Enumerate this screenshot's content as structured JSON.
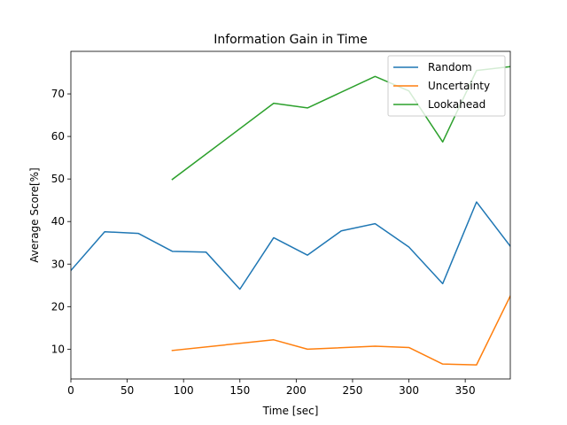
{
  "chart_data": {
    "type": "line",
    "title": "Information Gain in Time",
    "xlabel": "Time [sec]",
    "ylabel": "Average Score[%]",
    "xlim": [
      0,
      390
    ],
    "ylim": [
      3,
      80
    ],
    "xticks": [
      0,
      50,
      100,
      150,
      200,
      250,
      300,
      350
    ],
    "yticks": [
      10,
      20,
      30,
      40,
      50,
      60,
      70
    ],
    "grid": false,
    "legend_position": "top-right",
    "series": [
      {
        "name": "Random",
        "color": "#1f77b4",
        "x": [
          0,
          30,
          60,
          90,
          120,
          150,
          180,
          210,
          240,
          270,
          300,
          330,
          360,
          390
        ],
        "y": [
          28.5,
          37.6,
          37.2,
          33.0,
          32.8,
          24.1,
          36.2,
          32.1,
          37.8,
          39.5,
          34.0,
          25.4,
          44.6,
          34.2
        ]
      },
      {
        "name": "Uncertainty",
        "color": "#ff7f0e",
        "x": [
          90,
          180,
          210,
          270,
          300,
          330,
          360,
          390
        ],
        "y": [
          9.7,
          12.2,
          10.0,
          10.7,
          10.4,
          6.5,
          6.3,
          22.5
        ]
      },
      {
        "name": "Lookahead",
        "color": "#2ca02c",
        "x": [
          90,
          180,
          210,
          270,
          300,
          330,
          360,
          390
        ],
        "y": [
          49.9,
          67.8,
          66.7,
          74.1,
          70.7,
          58.7,
          75.5,
          76.4
        ]
      }
    ]
  }
}
